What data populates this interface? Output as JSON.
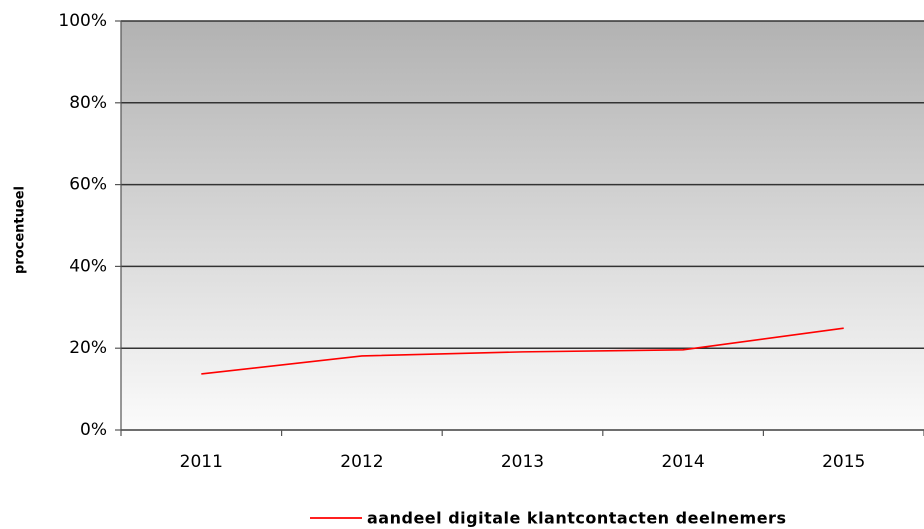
{
  "chart_data": {
    "type": "line",
    "y_label": "procentueel",
    "categories": [
      "2011",
      "2012",
      "2013",
      "2014",
      "2015"
    ],
    "series": [
      {
        "name": "aandeel digitale klantcontacten deelnemers",
        "color": "#ff0000",
        "values": [
          13.7,
          18.1,
          19.1,
          19.6,
          24.9
        ]
      }
    ],
    "ylim": [
      0,
      100
    ],
    "yticks": [
      {
        "value": 0,
        "label": "0%"
      },
      {
        "value": 20,
        "label": "20%"
      },
      {
        "value": 40,
        "label": "40%"
      },
      {
        "value": 60,
        "label": "60%"
      },
      {
        "value": 80,
        "label": "80%"
      },
      {
        "value": 100,
        "label": "100%"
      }
    ],
    "grid": true
  }
}
